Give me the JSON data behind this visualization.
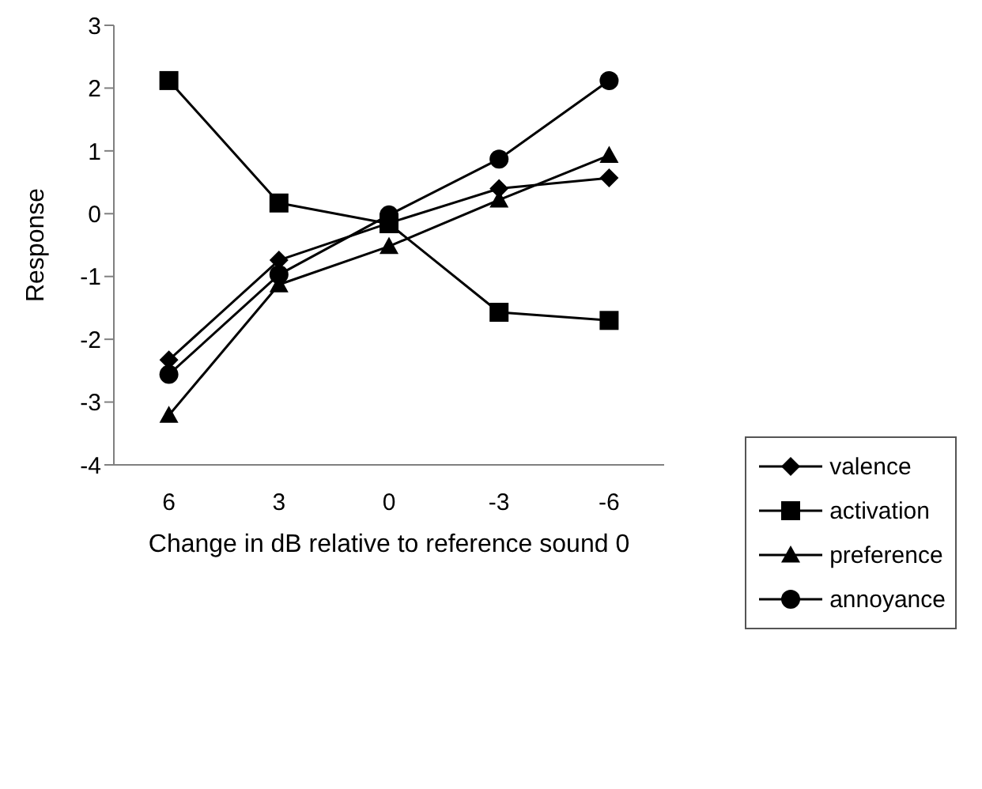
{
  "chart_data": {
    "type": "line",
    "xlabel": "Change in dB relative to reference sound 0",
    "ylabel": "Response",
    "categories": [
      "6",
      "3",
      "0",
      "-3",
      "-6"
    ],
    "ylim": [
      -4,
      3
    ],
    "yticks": [
      -4,
      -3,
      -2,
      -1,
      0,
      1,
      2,
      3
    ],
    "grid": false,
    "legend": "right",
    "series": [
      {
        "name": "valence",
        "color": "#000000",
        "marker": "diamond",
        "values": [
          -2.33,
          -0.74,
          -0.15,
          0.4,
          0.57
        ]
      },
      {
        "name": "activation",
        "color": "#000000",
        "marker": "square",
        "values": [
          2.12,
          0.17,
          -0.16,
          -1.57,
          -1.7
        ]
      },
      {
        "name": "preference",
        "color": "#000000",
        "marker": "triangle",
        "values": [
          -3.21,
          -1.13,
          -0.52,
          0.22,
          0.93
        ]
      },
      {
        "name": "annoyance",
        "color": "#000000",
        "marker": "circle",
        "values": [
          -2.56,
          -0.97,
          -0.02,
          0.87,
          2.12
        ]
      }
    ]
  }
}
